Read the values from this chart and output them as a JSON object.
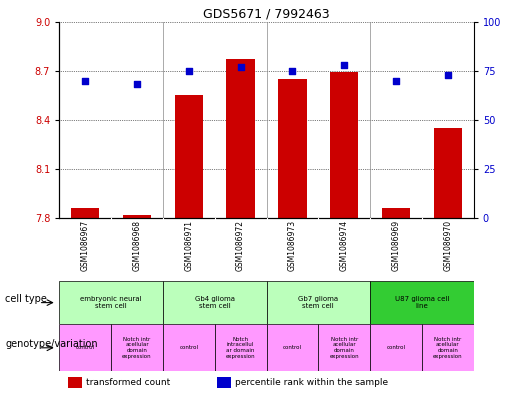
{
  "title": "GDS5671 / 7992463",
  "samples": [
    "GSM1086967",
    "GSM1086968",
    "GSM1086971",
    "GSM1086972",
    "GSM1086973",
    "GSM1086974",
    "GSM1086969",
    "GSM1086970"
  ],
  "bar_values": [
    7.86,
    7.82,
    8.55,
    8.77,
    8.65,
    8.69,
    7.86,
    8.35
  ],
  "dot_values": [
    70,
    68,
    75,
    77,
    75,
    78,
    70,
    73
  ],
  "ylim_left": [
    7.8,
    9.0
  ],
  "ylim_right": [
    0,
    100
  ],
  "yticks_left": [
    7.8,
    8.1,
    8.4,
    8.7,
    9.0
  ],
  "yticks_right": [
    0,
    25,
    50,
    75,
    100
  ],
  "bar_color": "#cc0000",
  "dot_color": "#0000cc",
  "bar_width": 0.55,
  "cell_types": [
    {
      "label": "embryonic neural\nstem cell",
      "span": [
        0,
        2
      ],
      "color": "#bbffbb"
    },
    {
      "label": "Gb4 glioma\nstem cell",
      "span": [
        2,
        4
      ],
      "color": "#bbffbb"
    },
    {
      "label": "Gb7 glioma\nstem cell",
      "span": [
        4,
        6
      ],
      "color": "#bbffbb"
    },
    {
      "label": "U87 glioma cell\nline",
      "span": [
        6,
        8
      ],
      "color": "#33cc33"
    }
  ],
  "genotype_labels": [
    {
      "label": "control",
      "span": [
        0,
        1
      ]
    },
    {
      "label": "Notch intr\nacellular\ndomain\nexpression",
      "span": [
        1,
        2
      ]
    },
    {
      "label": "control",
      "span": [
        2,
        3
      ]
    },
    {
      "label": "Notch\nintracellul\nar domain\nexpression",
      "span": [
        3,
        4
      ]
    },
    {
      "label": "control",
      "span": [
        4,
        5
      ]
    },
    {
      "label": "Notch intr\nacellular\ndomain\nexpression",
      "span": [
        5,
        6
      ]
    },
    {
      "label": "control",
      "span": [
        6,
        7
      ]
    },
    {
      "label": "Notch intr\nacellular\ndomain\nexpression",
      "span": [
        7,
        8
      ]
    }
  ],
  "legend_bar_label": "transformed count",
  "legend_dot_label": "percentile rank within the sample",
  "cell_type_label": "cell type",
  "genotype_label": "genotype/variation",
  "bg_color": "#ffffff",
  "ax_bg_color": "#ffffff",
  "tick_label_color_left": "#cc0000",
  "tick_label_color_right": "#0000cc",
  "sample_name_bg": "#c8c8c8",
  "genotype_color": "#ff99ff",
  "group_line_color": "#888888"
}
